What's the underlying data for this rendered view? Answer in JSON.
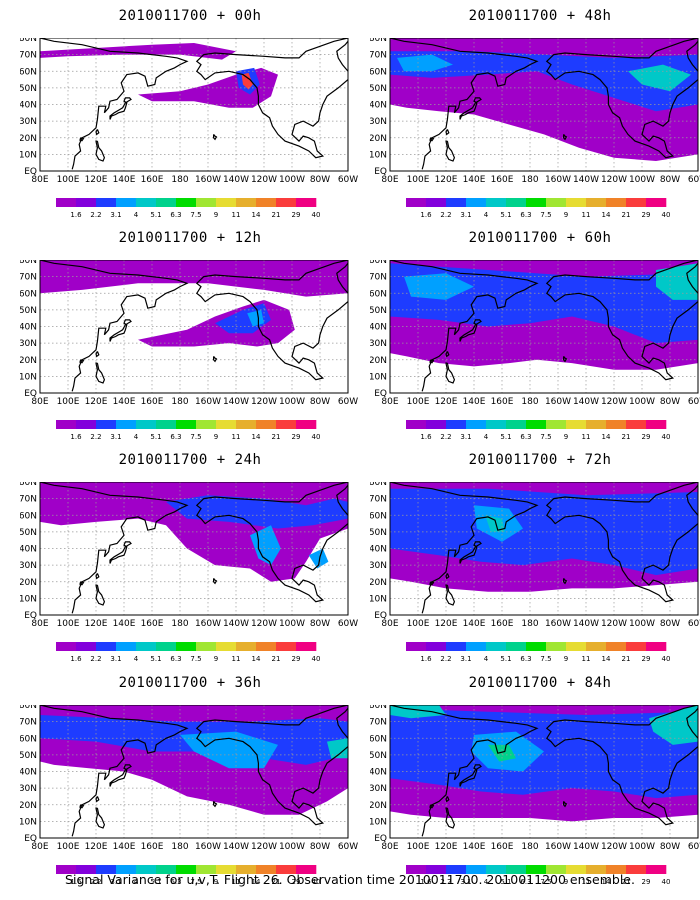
{
  "footer": "Signal Variance for u,v,T. Flight 26. Observation time 2010011700. 2010011200 ensemble.",
  "chart_data": {
    "type": "heatmap",
    "panels": [
      {
        "title": "2010011700 + 00h",
        "lead_h": 0
      },
      {
        "title": "2010011700 + 48h",
        "lead_h": 48
      },
      {
        "title": "2010011700 + 12h",
        "lead_h": 12
      },
      {
        "title": "2010011700 + 60h",
        "lead_h": 60
      },
      {
        "title": "2010011700 + 24h",
        "lead_h": 24
      },
      {
        "title": "2010011700 + 72h",
        "lead_h": 72
      },
      {
        "title": "2010011700 + 36h",
        "lead_h": 36
      },
      {
        "title": "2010011700 + 84h",
        "lead_h": 84
      }
    ],
    "x_ticks": [
      "80E",
      "100E",
      "120E",
      "140E",
      "160E",
      "180",
      "160W",
      "140W",
      "120W",
      "100W",
      "80W",
      "60W"
    ],
    "y_ticks": [
      "EQ",
      "10N",
      "20N",
      "30N",
      "40N",
      "50N",
      "60N",
      "70N",
      "80N"
    ],
    "xlim": [
      80,
      300
    ],
    "ylim": [
      0,
      80
    ],
    "grid": true,
    "colorbar": {
      "levels": [
        "1.6",
        "2.2",
        "3.1",
        "4",
        "5.1",
        "6.3",
        "7.5",
        "9",
        "11",
        "14",
        "21",
        "29",
        "40"
      ],
      "colors": [
        "#a000c8",
        "#8200dc",
        "#1e3cff",
        "#00a0ff",
        "#00c8c8",
        "#00d28c",
        "#00dc00",
        "#a0e632",
        "#e6dc32",
        "#e6af2d",
        "#f08228",
        "#fa3c3c",
        "#f00082"
      ]
    }
  }
}
